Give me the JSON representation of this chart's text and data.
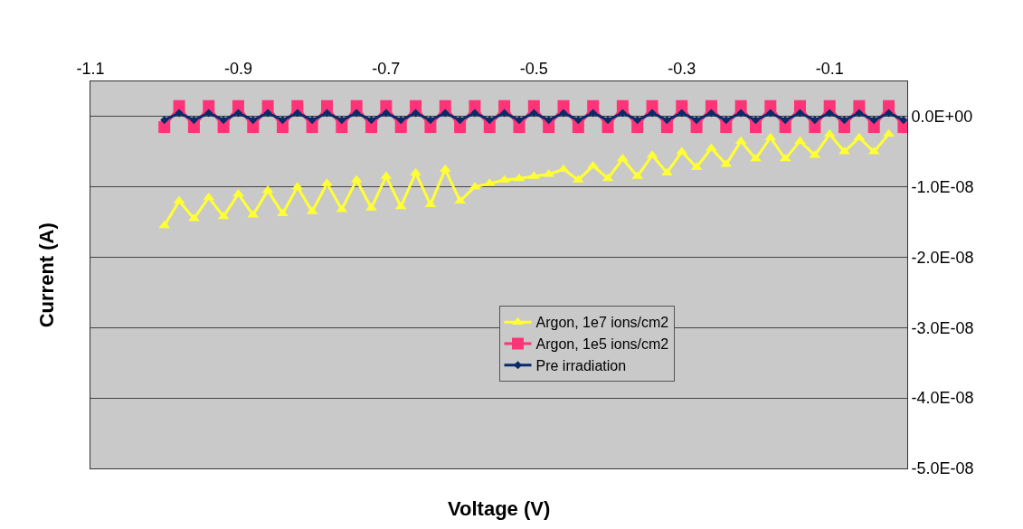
{
  "chart_data": {
    "type": "line",
    "xlabel": "Voltage (V)",
    "ylabel": "Current (A)",
    "x": [
      -1.0,
      -0.98,
      -0.96,
      -0.94,
      -0.92,
      -0.9,
      -0.88,
      -0.86,
      -0.84,
      -0.82,
      -0.8,
      -0.78,
      -0.76,
      -0.74,
      -0.72,
      -0.7,
      -0.68,
      -0.66,
      -0.64,
      -0.62,
      -0.6,
      -0.58,
      -0.56,
      -0.54,
      -0.52,
      -0.5,
      -0.48,
      -0.46,
      -0.44,
      -0.42,
      -0.4,
      -0.38,
      -0.36,
      -0.34,
      -0.32,
      -0.3,
      -0.28,
      -0.26,
      -0.24,
      -0.22,
      -0.2,
      -0.18,
      -0.16,
      -0.14,
      -0.12,
      -0.1,
      -0.08,
      -0.06,
      -0.04,
      -0.02,
      0.0
    ],
    "series": [
      {
        "name": "Argon, 1e7 ions/cm2",
        "color": "#ffff33",
        "marker": "triangle",
        "values": [
          -1.55e-08,
          -1.2e-08,
          -1.45e-08,
          -1.15e-08,
          -1.42e-08,
          -1.1e-08,
          -1.4e-08,
          -1.05e-08,
          -1.38e-08,
          -1e-08,
          -1.35e-08,
          -9.5e-09,
          -1.32e-08,
          -9e-09,
          -1.3e-08,
          -8.5e-09,
          -1.28e-08,
          -8e-09,
          -1.25e-08,
          -7.5e-09,
          -1.2e-08,
          -1e-08,
          -9.5e-09,
          -9e-09,
          -8.8e-09,
          -8.5e-09,
          -8.2e-09,
          -7.5e-09,
          -9e-09,
          -7e-09,
          -8.8e-09,
          -6e-09,
          -8.5e-09,
          -5.5e-09,
          -8e-09,
          -5e-09,
          -7.2e-09,
          -4.5e-09,
          -6.8e-09,
          -3.5e-09,
          -6e-09,
          -3e-09,
          -6e-09,
          -3.5e-09,
          -5.5e-09,
          -2.5e-09,
          -5e-09,
          -3e-09,
          -5e-09,
          -2.5e-09,
          null
        ]
      },
      {
        "name": "Argon, 1e5 ions/cm2",
        "color": "#ff3377",
        "marker": "square",
        "values": [
          -1.5e-09,
          1.5e-09,
          -1.5e-09,
          1.5e-09,
          -1.5e-09,
          1.5e-09,
          -1.5e-09,
          1.5e-09,
          -1.5e-09,
          1.5e-09,
          -1.5e-09,
          1.5e-09,
          -1.5e-09,
          1.5e-09,
          -1.5e-09,
          1.5e-09,
          -1.5e-09,
          1.5e-09,
          -1.5e-09,
          1.5e-09,
          -1.5e-09,
          1.5e-09,
          -1.5e-09,
          1.5e-09,
          -1.5e-09,
          1.5e-09,
          -1.5e-09,
          1.5e-09,
          -1.5e-09,
          1.5e-09,
          -1.5e-09,
          1.5e-09,
          -1.5e-09,
          1.5e-09,
          -1.5e-09,
          1.5e-09,
          -1.5e-09,
          1.5e-09,
          -1.5e-09,
          1.5e-09,
          -1.5e-09,
          1.5e-09,
          -1.5e-09,
          1.5e-09,
          -1.5e-09,
          1.5e-09,
          -1.5e-09,
          1.5e-09,
          -1.5e-09,
          1.5e-09,
          -1.5e-09
        ]
      },
      {
        "name": "Pre irradiation",
        "color": "#0a2a6a",
        "marker": "diamond",
        "values": [
          -5e-10,
          5e-10,
          -5e-10,
          5e-10,
          -5e-10,
          5e-10,
          -5e-10,
          5e-10,
          -5e-10,
          5e-10,
          -5e-10,
          5e-10,
          -5e-10,
          5e-10,
          -5e-10,
          5e-10,
          -5e-10,
          5e-10,
          -5e-10,
          5e-10,
          -5e-10,
          5e-10,
          -5e-10,
          5e-10,
          -5e-10,
          5e-10,
          -5e-10,
          5e-10,
          -5e-10,
          5e-10,
          -5e-10,
          5e-10,
          -5e-10,
          5e-10,
          -5e-10,
          5e-10,
          -5e-10,
          5e-10,
          -5e-10,
          5e-10,
          -5e-10,
          5e-10,
          -5e-10,
          5e-10,
          -5e-10,
          5e-10,
          -5e-10,
          5e-10,
          -5e-10,
          5e-10,
          -5e-10
        ]
      }
    ],
    "xlim": [
      -1.1,
      0.005
    ],
    "xticks": [
      -1.1,
      -0.9,
      -0.7,
      -0.5,
      -0.3,
      -0.1
    ],
    "ylim": [
      -5e-08,
      5e-09
    ],
    "yticks": [
      {
        "value": 0,
        "label": "0.0E+00"
      },
      {
        "value": -1e-08,
        "label": "-1.0E-08"
      },
      {
        "value": -2e-08,
        "label": "-2.0E-08"
      },
      {
        "value": -3e-08,
        "label": "-3.0E-08"
      },
      {
        "value": -4e-08,
        "label": "-4.0E-08"
      },
      {
        "value": -5e-08,
        "label": "-5.0E-08"
      }
    ],
    "grid": "y",
    "legend": "right",
    "line_style": "solid"
  }
}
